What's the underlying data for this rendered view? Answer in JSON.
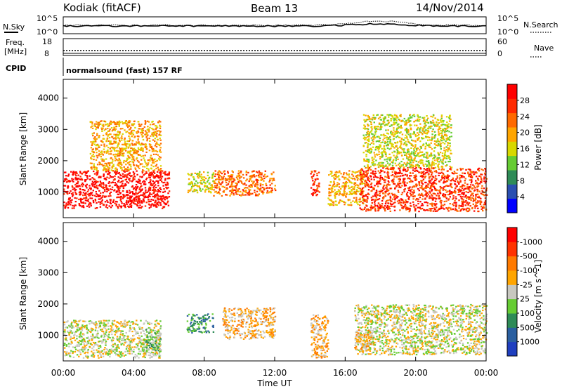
{
  "header": {
    "station": "Kodiak (fitACF)",
    "beam": "Beam 13",
    "date": "14/Nov/2014"
  },
  "status_panel": {
    "nsky_label": "N.Sky",
    "nsky_ticks": [
      "10^5",
      "10^0"
    ],
    "nsearch_label": "N.Search",
    "nsearch_ticks": [
      "10^5",
      "10^0"
    ],
    "freq_label_1": "Freq.",
    "freq_label_2": "[MHz]",
    "freq_ticks": [
      "18",
      "8"
    ],
    "nave_label": "Nave",
    "nave_ticks": [
      "60",
      "0"
    ],
    "cpid_label": "CPID",
    "cpid_value": "normalsound (fast) 157 RF"
  },
  "chart_data": [
    {
      "type": "heatmap",
      "name": "power-panel",
      "ylabel": "Slant Range [km]",
      "xlabel": "Time UT",
      "x_ticks": [
        "00:00",
        "04:00",
        "08:00",
        "12:00",
        "16:00",
        "20:00",
        "00:00"
      ],
      "xlim_hours": [
        0,
        24
      ],
      "y_ticks": [
        "1000",
        "2000",
        "3000",
        "4000"
      ],
      "ylim": [
        180,
        4600
      ],
      "colorbar": {
        "label": "Power [dB]",
        "ticks": [
          "4",
          "8",
          "12",
          "16",
          "20",
          "24",
          "28"
        ],
        "colors": [
          "#0000ff",
          "#2a4fb0",
          "#2e8b57",
          "#66cc33",
          "#d8d800",
          "#ffa500",
          "#ff6a00",
          "#ff2a00",
          "#ff0000"
        ]
      },
      "features": [
        {
          "t_start": 0.0,
          "t_end": 6.0,
          "r_low": 500,
          "r_high": 1700,
          "level": 8
        },
        {
          "t_start": 1.5,
          "t_end": 5.5,
          "r_low": 1700,
          "r_high": 3300,
          "level": 5
        },
        {
          "t_start": 7.0,
          "t_end": 8.5,
          "r_low": 1000,
          "r_high": 1700,
          "level": 4
        },
        {
          "t_start": 8.5,
          "t_end": 12.0,
          "r_low": 900,
          "r_high": 1700,
          "level": 6
        },
        {
          "t_start": 14.0,
          "t_end": 14.5,
          "r_low": 900,
          "r_high": 1700,
          "level": 7
        },
        {
          "t_start": 15.0,
          "t_end": 17.0,
          "r_low": 600,
          "r_high": 1700,
          "level": 5
        },
        {
          "t_start": 16.8,
          "t_end": 24.0,
          "r_low": 400,
          "r_high": 1800,
          "level": 7
        },
        {
          "t_start": 17.0,
          "t_end": 22.0,
          "r_low": 1800,
          "r_high": 3500,
          "level": 4
        }
      ]
    },
    {
      "type": "heatmap",
      "name": "velocity-panel",
      "ylabel": "Slant Range [km]",
      "xlabel": "Time UT",
      "x_ticks": [
        "00:00",
        "04:00",
        "08:00",
        "12:00",
        "16:00",
        "20:00",
        "00:00"
      ],
      "xlim_hours": [
        0,
        24
      ],
      "y_ticks": [
        "1000",
        "2000",
        "3000",
        "4000"
      ],
      "ylim": [
        180,
        4600
      ],
      "colorbar": {
        "label": "Velocity [m s^-1]",
        "ticks": [
          "1000",
          "500",
          "100",
          "25",
          "-25",
          "-100",
          "-500",
          "-1000"
        ],
        "colors": [
          "#1f3fbf",
          "#2a5fa0",
          "#2e8b57",
          "#66cc33",
          "#c8c8c0",
          "#ffa500",
          "#ff7a00",
          "#ff3300",
          "#ff0000"
        ]
      },
      "features": [
        {
          "t_start": 0.0,
          "t_end": 5.5,
          "r_low": 300,
          "r_high": 1500,
          "level": 4
        },
        {
          "t_start": 4.5,
          "t_end": 5.5,
          "r_low": 500,
          "r_high": 1200,
          "level": 3
        },
        {
          "t_start": 7.0,
          "t_end": 8.5,
          "r_low": 1100,
          "r_high": 1700,
          "level": 2
        },
        {
          "t_start": 9.0,
          "t_end": 12.0,
          "r_low": 900,
          "r_high": 1900,
          "level": 5
        },
        {
          "t_start": 14.0,
          "t_end": 15.0,
          "r_low": 300,
          "r_high": 1700,
          "level": 5
        },
        {
          "t_start": 16.5,
          "t_end": 24.0,
          "r_low": 400,
          "r_high": 2000,
          "level": 4
        },
        {
          "t_start": 16.5,
          "t_end": 17.5,
          "r_low": 500,
          "r_high": 1200,
          "level": 5
        }
      ]
    }
  ]
}
